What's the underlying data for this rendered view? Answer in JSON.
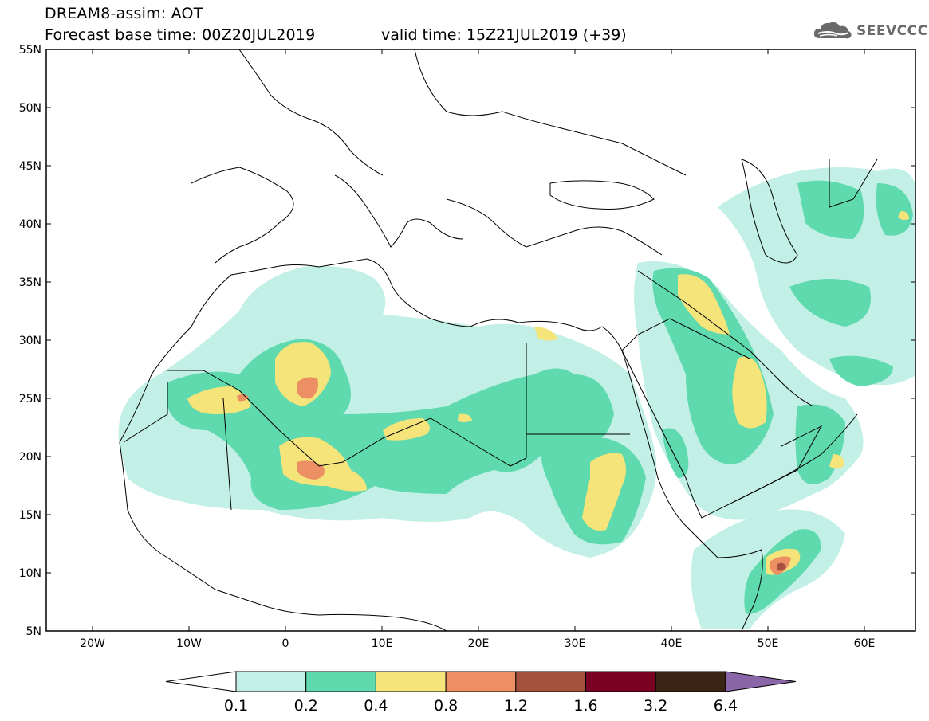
{
  "header": {
    "model_title": "DREAM8-assim: AOT",
    "base_time": "Forecast base time: 00Z20JUL2019",
    "valid_time": "valid time: 15Z21JUL2019 (+39)",
    "logo_text": "SEEVCCC",
    "logo_icon": "cloud-icon"
  },
  "map": {
    "lat_labels": [
      "55N",
      "50N",
      "45N",
      "40N",
      "35N",
      "30N",
      "25N",
      "20N",
      "15N",
      "10N",
      "5N"
    ],
    "lon_labels": [
      "20W",
      "10W",
      "0",
      "10E",
      "20E",
      "30E",
      "40E",
      "50E",
      "60E"
    ],
    "lat_range": [
      5,
      55
    ],
    "lon_range": [
      -25,
      65
    ]
  },
  "colorbar": {
    "levels": [
      "0.1",
      "0.2",
      "0.4",
      "0.8",
      "1.2",
      "1.6",
      "3.2",
      "6.4"
    ],
    "colors": [
      "#ffffff",
      "#c2f0e6",
      "#5fdaae",
      "#f5e47a",
      "#ec9063",
      "#a6503e",
      "#7a0024",
      "#3b2414",
      "#8a66a8"
    ]
  },
  "palette": {
    "c1": "#c2f0e6",
    "c2": "#5fdaae",
    "c3": "#f5e47a",
    "c4": "#ec9063",
    "c5": "#a6503e"
  }
}
